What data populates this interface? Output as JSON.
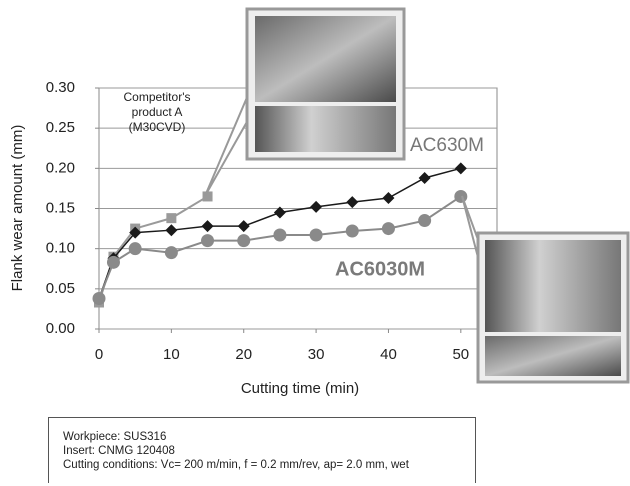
{
  "chart_data": {
    "type": "line",
    "x_label": "Cutting time (min)",
    "y_label": "Flank wear amount (mm)",
    "xlim": [
      0,
      55
    ],
    "xticks": [
      0,
      10,
      20,
      30,
      40,
      50
    ],
    "ylim": [
      0,
      0.3
    ],
    "yticks": [
      {
        "value": 0,
        "label": "0.00"
      },
      {
        "value": 0.05,
        "label": "0.05"
      },
      {
        "value": 0.1,
        "label": "0.10"
      },
      {
        "value": 0.15,
        "label": "0.15"
      },
      {
        "value": 0.2,
        "label": "0.20"
      },
      {
        "value": 0.25,
        "label": "0.25"
      },
      {
        "value": 0.3,
        "label": "0.30"
      }
    ],
    "grid": true,
    "series": [
      {
        "name": "Competitor's product A (M30CVD)",
        "color": "#9a9a9a",
        "marker": "square",
        "x": [
          0,
          2,
          5,
          10,
          15
        ],
        "values": [
          0.033,
          0.09,
          0.125,
          0.138,
          0.165
        ]
      },
      {
        "name": "AC630M",
        "color": "#1a1a1a",
        "marker": "diamond",
        "x": [
          0,
          2,
          5,
          10,
          15,
          20,
          25,
          30,
          35,
          40,
          45,
          50
        ],
        "values": [
          0.038,
          0.088,
          0.12,
          0.123,
          0.128,
          0.128,
          0.145,
          0.152,
          0.158,
          0.163,
          0.188,
          0.2
        ]
      },
      {
        "name": "AC6030M",
        "color": "#8a8a8a",
        "marker": "circle",
        "x": [
          0,
          2,
          5,
          10,
          15,
          20,
          25,
          30,
          35,
          40,
          45,
          50
        ],
        "values": [
          0.038,
          0.083,
          0.1,
          0.095,
          0.11,
          0.11,
          0.117,
          0.117,
          0.122,
          0.125,
          0.135,
          0.165
        ]
      }
    ],
    "notes": [
      "Workpiece: SUS316",
      "Insert: CNMG 120408",
      "Cutting conditions: Vc= 200 m/min, f = 0.2 mm/rev, ap= 2.0 mm, wet"
    ]
  }
}
